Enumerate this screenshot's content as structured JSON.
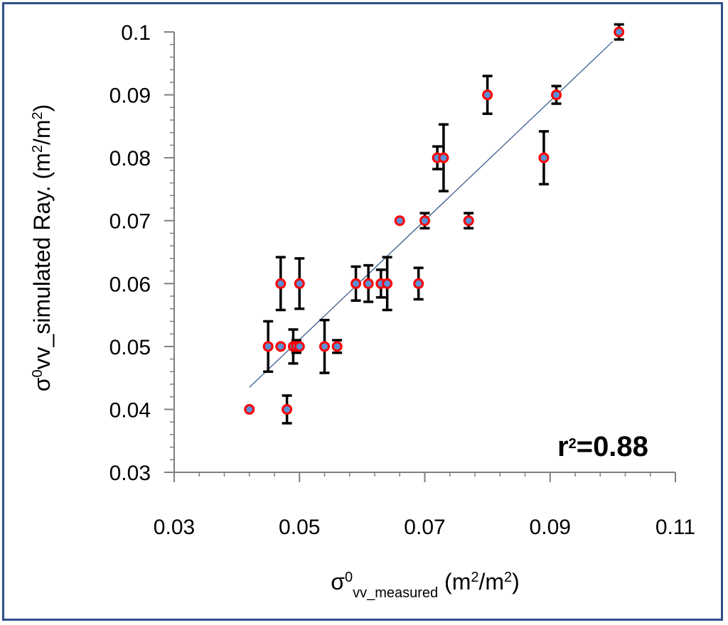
{
  "chart_data": {
    "type": "scatter",
    "title": "",
    "xlabel": {
      "symbol": "σ",
      "sup": "0",
      "sub": "vv_measured",
      "unit_pre": " (m",
      "unit_sup": "2",
      "unit_mid": "/m",
      "unit_sup2": "2",
      "unit_post": ")"
    },
    "ylabel": {
      "symbol": "σ",
      "sup": "0",
      "main": "vv_simulated Ray. (m",
      "unit_sup": "2",
      "unit_mid": "/m",
      "unit_sup2": "2",
      "unit_post": ")"
    },
    "xlim": [
      0.03,
      0.11
    ],
    "ylim": [
      0.03,
      0.1
    ],
    "xticks": [
      0.03,
      0.05,
      0.07,
      0.09,
      0.11
    ],
    "xtick_labels": [
      "0.03",
      "0.05",
      "0.07",
      "0.09",
      "0.11"
    ],
    "yticks": [
      0.03,
      0.04,
      0.05,
      0.06,
      0.07,
      0.08,
      0.09,
      0.1
    ],
    "ytick_labels": [
      "0.03",
      "0.04",
      "0.05",
      "0.06",
      "0.07",
      "0.08",
      "0.09",
      "0.1"
    ],
    "x_minor_step": 0.004,
    "y_minor_step": 0.002,
    "grid": false,
    "annotation": {
      "base": "r",
      "sup": "2",
      "rest": "=0.88"
    },
    "trendline": {
      "x_start": 0.042,
      "x_end": 0.1,
      "y_start": 0.0435,
      "y_end": 0.0985
    },
    "colors": {
      "marker_fill": "#5b8fd6",
      "marker_edge": "#ff0000",
      "error_bar": "#000000",
      "trendline": "#3a5b8c",
      "frame": "#2f4f8a"
    },
    "points": [
      {
        "x": 0.042,
        "y": 0.04,
        "err": 0
      },
      {
        "x": 0.045,
        "y": 0.05,
        "err": 0.004
      },
      {
        "x": 0.047,
        "y": 0.05,
        "err": 0
      },
      {
        "x": 0.047,
        "y": 0.06,
        "err": 0.0042
      },
      {
        "x": 0.048,
        "y": 0.04,
        "err": 0.0022
      },
      {
        "x": 0.049,
        "y": 0.05,
        "err": 0.0027
      },
      {
        "x": 0.0495,
        "y": 0.05,
        "err": 0.001
      },
      {
        "x": 0.05,
        "y": 0.05,
        "err": 0
      },
      {
        "x": 0.05,
        "y": 0.06,
        "err": 0.004
      },
      {
        "x": 0.054,
        "y": 0.05,
        "err": 0.0042
      },
      {
        "x": 0.056,
        "y": 0.05,
        "err": 0.001
      },
      {
        "x": 0.059,
        "y": 0.06,
        "err": 0.0027
      },
      {
        "x": 0.061,
        "y": 0.06,
        "err": 0.0029
      },
      {
        "x": 0.063,
        "y": 0.06,
        "err": 0.0022
      },
      {
        "x": 0.064,
        "y": 0.06,
        "err": 0.0042
      },
      {
        "x": 0.066,
        "y": 0.07,
        "err": 0
      },
      {
        "x": 0.069,
        "y": 0.06,
        "err": 0.0025
      },
      {
        "x": 0.07,
        "y": 0.07,
        "err": 0.0012
      },
      {
        "x": 0.072,
        "y": 0.08,
        "err": 0.0018
      },
      {
        "x": 0.073,
        "y": 0.08,
        "err": 0.0053
      },
      {
        "x": 0.077,
        "y": 0.07,
        "err": 0.0012
      },
      {
        "x": 0.08,
        "y": 0.09,
        "err": 0.003
      },
      {
        "x": 0.089,
        "y": 0.08,
        "err": 0.0042
      },
      {
        "x": 0.091,
        "y": 0.09,
        "err": 0.0014
      },
      {
        "x": 0.101,
        "y": 0.1,
        "err": 0.0012
      }
    ]
  }
}
